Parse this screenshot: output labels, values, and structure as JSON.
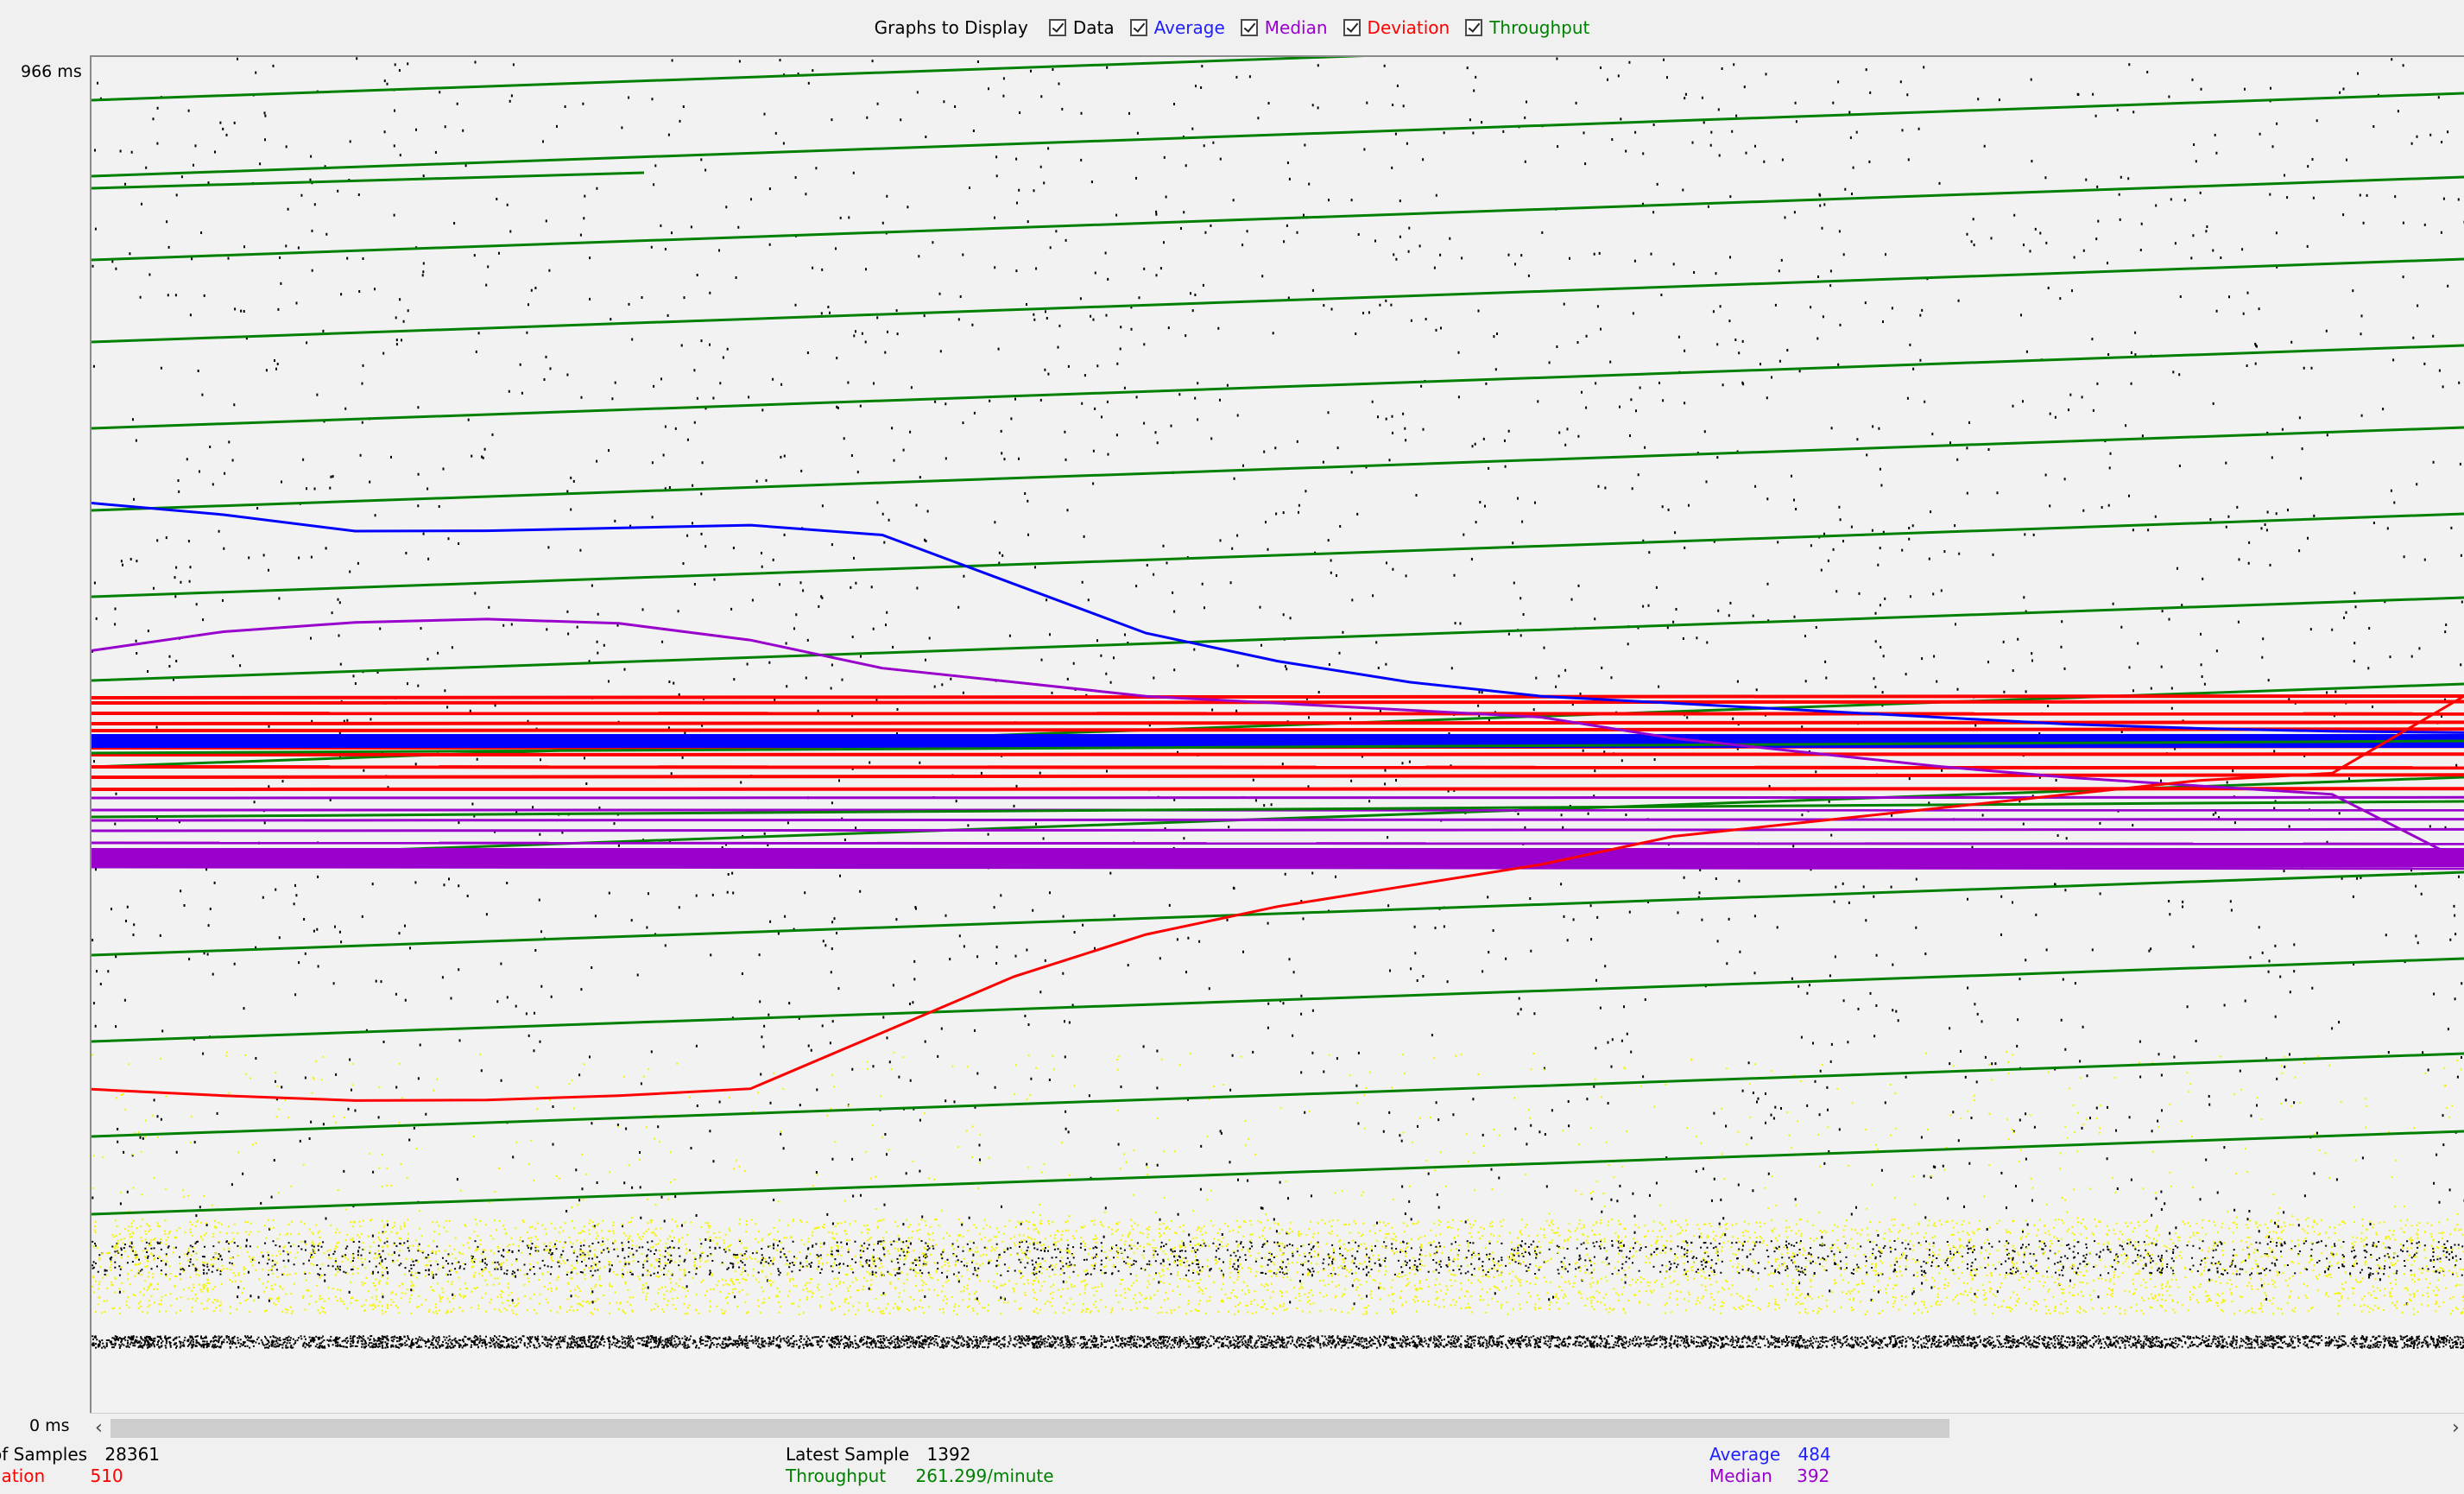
{
  "toolbar": {
    "label": "Graphs to Display",
    "options": [
      {
        "label": "Data",
        "checked": true,
        "color": "#000000"
      },
      {
        "label": "Average",
        "checked": true,
        "color": "#0000ff"
      },
      {
        "label": "Median",
        "checked": true,
        "color": "#9900cc"
      },
      {
        "label": "Deviation",
        "checked": true,
        "color": "#ff0000"
      },
      {
        "label": "Throughput",
        "checked": true,
        "color": "#008000"
      }
    ]
  },
  "axis": {
    "y_max_label": "966  ms",
    "y_min_label": "0  ms"
  },
  "status": {
    "samples_label": "of Samples",
    "samples_value": "28361",
    "deviation_label": "iation",
    "deviation_value": "510",
    "latest_label": "Latest Sample",
    "latest_value": "1392",
    "throughput_label": "Throughput",
    "throughput_value": "261.299/minute",
    "average_label": "Average",
    "average_value": "484",
    "median_label": "Median",
    "median_value": "392"
  },
  "chart_data": {
    "type": "scatter",
    "ylim": [
      0,
      966
    ],
    "series": [
      {
        "name": "Data",
        "color": "#000000"
      },
      {
        "name": "Average",
        "color": "#0000ff",
        "values": [
          650,
          640,
          630,
          628,
          630,
          632,
          625,
          590,
          555,
          535,
          520,
          510,
          505,
          500,
          495,
          490,
          487,
          485,
          484
        ]
      },
      {
        "name": "Median",
        "color": "#9900cc",
        "values": [
          540,
          555,
          560,
          565,
          562,
          550,
          530,
          520,
          510,
          505,
          500,
          495,
          480,
          470,
          460,
          452,
          446,
          440,
          392
        ]
      },
      {
        "name": "Deviation",
        "color": "#ff0000",
        "values": [
          230,
          225,
          220,
          222,
          225,
          230,
          270,
          310,
          340,
          360,
          375,
          390,
          410,
          420,
          430,
          440,
          450,
          455,
          510
        ]
      },
      {
        "name": "Throughput",
        "color": "#008000"
      }
    ]
  }
}
